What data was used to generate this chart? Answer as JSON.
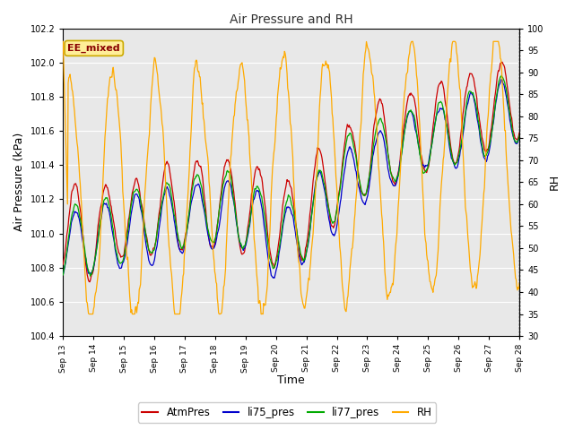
{
  "title": "Air Pressure and RH",
  "xlabel": "Time",
  "ylabel_left": "Air Pressure (kPa)",
  "ylabel_right": "RH",
  "annotation": "EE_mixed",
  "ylim_left": [
    100.4,
    102.2
  ],
  "ylim_right": [
    30,
    100
  ],
  "xtick_labels": [
    "Sep 13",
    "Sep 14",
    "Sep 15",
    "Sep 16",
    "Sep 17",
    "Sep 18",
    "Sep 19",
    "Sep 20",
    "Sep 21",
    "Sep 22",
    "Sep 23",
    "Sep 24",
    "Sep 25",
    "Sep 26",
    "Sep 27",
    "Sep 28"
  ],
  "ytick_left": [
    100.4,
    100.6,
    100.8,
    101.0,
    101.2,
    101.4,
    101.6,
    101.8,
    102.0,
    102.2
  ],
  "ytick_right": [
    30,
    35,
    40,
    45,
    50,
    55,
    60,
    65,
    70,
    75,
    80,
    85,
    90,
    95,
    100
  ],
  "colors": {
    "AtmPres": "#cc0000",
    "li75_pres": "#0000cc",
    "li77_pres": "#00aa00",
    "RH": "#ffaa00"
  },
  "background_color": "#ffffff",
  "plot_bg_color": "#e8e8e8",
  "grid_color": "#ffffff",
  "title_color": "#333333",
  "annotation_bg": "#ffee99",
  "annotation_fg": "#880000",
  "annotation_border": "#ccaa00"
}
